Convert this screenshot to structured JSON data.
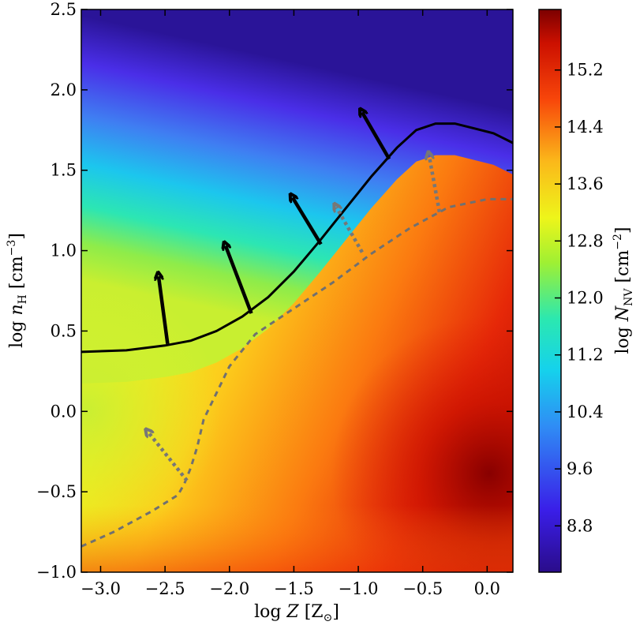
{
  "chart_data": {
    "type": "heatmap",
    "title": "",
    "xlabel": "log Z [Z⊙]",
    "ylabel": "log nH [cm−3]",
    "colorbar_label": "log NNV [cm−2]",
    "xlim": [
      -3.15,
      0.2
    ],
    "ylim": [
      -1.0,
      2.5
    ],
    "colorbar_range": [
      8.15,
      16.05
    ],
    "colormap": "jet",
    "x_ticks": [
      "−3.0",
      "−2.5",
      "−2.0",
      "−1.5",
      "−1.0",
      "−0.5",
      "0.0"
    ],
    "x_tick_values": [
      -3.0,
      -2.5,
      -2.0,
      -1.5,
      -1.0,
      -0.5,
      0.0
    ],
    "y_ticks": [
      "−1.0",
      "−0.5",
      "0.0",
      "0.5",
      "1.0",
      "1.5",
      "2.0",
      "2.5"
    ],
    "y_tick_values": [
      -1.0,
      -0.5,
      0.0,
      0.5,
      1.0,
      1.5,
      2.0,
      2.5
    ],
    "colorbar_ticks": [
      "8.8",
      "9.6",
      "10.4",
      "11.2",
      "12.0",
      "12.8",
      "13.6",
      "14.4",
      "15.2"
    ],
    "colorbar_tick_values": [
      8.8,
      9.6,
      10.4,
      11.2,
      12.0,
      12.8,
      13.6,
      14.4,
      15.2
    ],
    "grid": false,
    "series": [
      {
        "style": "solid",
        "color": "#000000",
        "x": [
          -3.15,
          -2.8,
          -2.5,
          -2.3,
          -2.1,
          -1.9,
          -1.7,
          -1.5,
          -1.3,
          -1.1,
          -0.9,
          -0.7,
          -0.55,
          -0.4,
          -0.25,
          -0.1,
          0.05,
          0.2
        ],
        "y": [
          0.37,
          0.38,
          0.41,
          0.44,
          0.5,
          0.59,
          0.71,
          0.87,
          1.06,
          1.26,
          1.46,
          1.64,
          1.75,
          1.79,
          1.79,
          1.76,
          1.73,
          1.67
        ]
      },
      {
        "style": "dashed",
        "color": "#707070",
        "x": [
          -3.15,
          -2.9,
          -2.6,
          -2.4,
          -2.35,
          -2.3,
          -2.25,
          -2.2,
          -2.0,
          -1.8,
          -1.5,
          -1.2,
          -0.9,
          -0.6,
          -0.3,
          0.0,
          0.2
        ],
        "y": [
          -0.84,
          -0.75,
          -0.62,
          -0.52,
          -0.45,
          -0.35,
          -0.22,
          -0.05,
          0.28,
          0.48,
          0.64,
          0.8,
          0.98,
          1.14,
          1.27,
          1.32,
          1.32
        ]
      }
    ],
    "arrows_solid": [
      {
        "x1": -2.48,
        "y1": 0.42,
        "x2": -2.55,
        "y2": 0.84
      },
      {
        "x1": -1.83,
        "y1": 0.61,
        "x2": -2.03,
        "y2": 1.03
      },
      {
        "x1": -1.29,
        "y1": 1.04,
        "x2": -1.51,
        "y2": 1.33
      },
      {
        "x1": -0.76,
        "y1": 1.57,
        "x2": -0.97,
        "y2": 1.86
      }
    ],
    "arrows_dashed": [
      {
        "x1": -2.33,
        "y1": -0.43,
        "x2": -2.63,
        "y2": -0.13
      },
      {
        "x1": -0.97,
        "y1": 0.99,
        "x2": -1.17,
        "y2": 1.27
      },
      {
        "x1": -0.37,
        "y1": 1.24,
        "x2": -0.45,
        "y2": 1.59
      }
    ]
  }
}
